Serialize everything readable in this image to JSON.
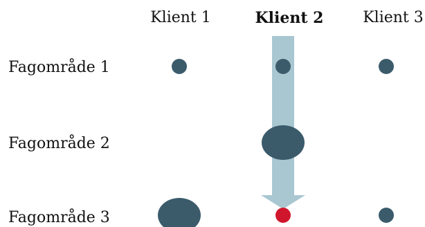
{
  "columns": [
    {
      "label": "Klient 1",
      "highlighted": false
    },
    {
      "label": "Klient 2",
      "highlighted": true
    },
    {
      "label": "Klient 3",
      "highlighted": false
    }
  ],
  "rows": [
    {
      "label": "Fagområde 1"
    },
    {
      "label": "Fagområde 2"
    },
    {
      "label": "Fagområde 3"
    }
  ],
  "bubbles": [
    {
      "column": 0,
      "row": 0,
      "size": "small",
      "color": "#3b5b6b"
    },
    {
      "column": 1,
      "row": 0,
      "size": "small",
      "color": "#3b5b6b"
    },
    {
      "column": 2,
      "row": 0,
      "size": "small",
      "color": "#3b5b6b"
    },
    {
      "column": 1,
      "row": 1,
      "size": "large",
      "color": "#3b5b6b"
    },
    {
      "column": 0,
      "row": 2,
      "size": "large",
      "color": "#3b5b6b"
    },
    {
      "column": 1,
      "row": 2,
      "size": "small",
      "color": "#d0162d"
    },
    {
      "column": 2,
      "row": 2,
      "size": "small",
      "color": "#3b5b6b"
    }
  ],
  "arrow": {
    "column": 1,
    "direction": "down",
    "color": "#a9c7d1"
  }
}
